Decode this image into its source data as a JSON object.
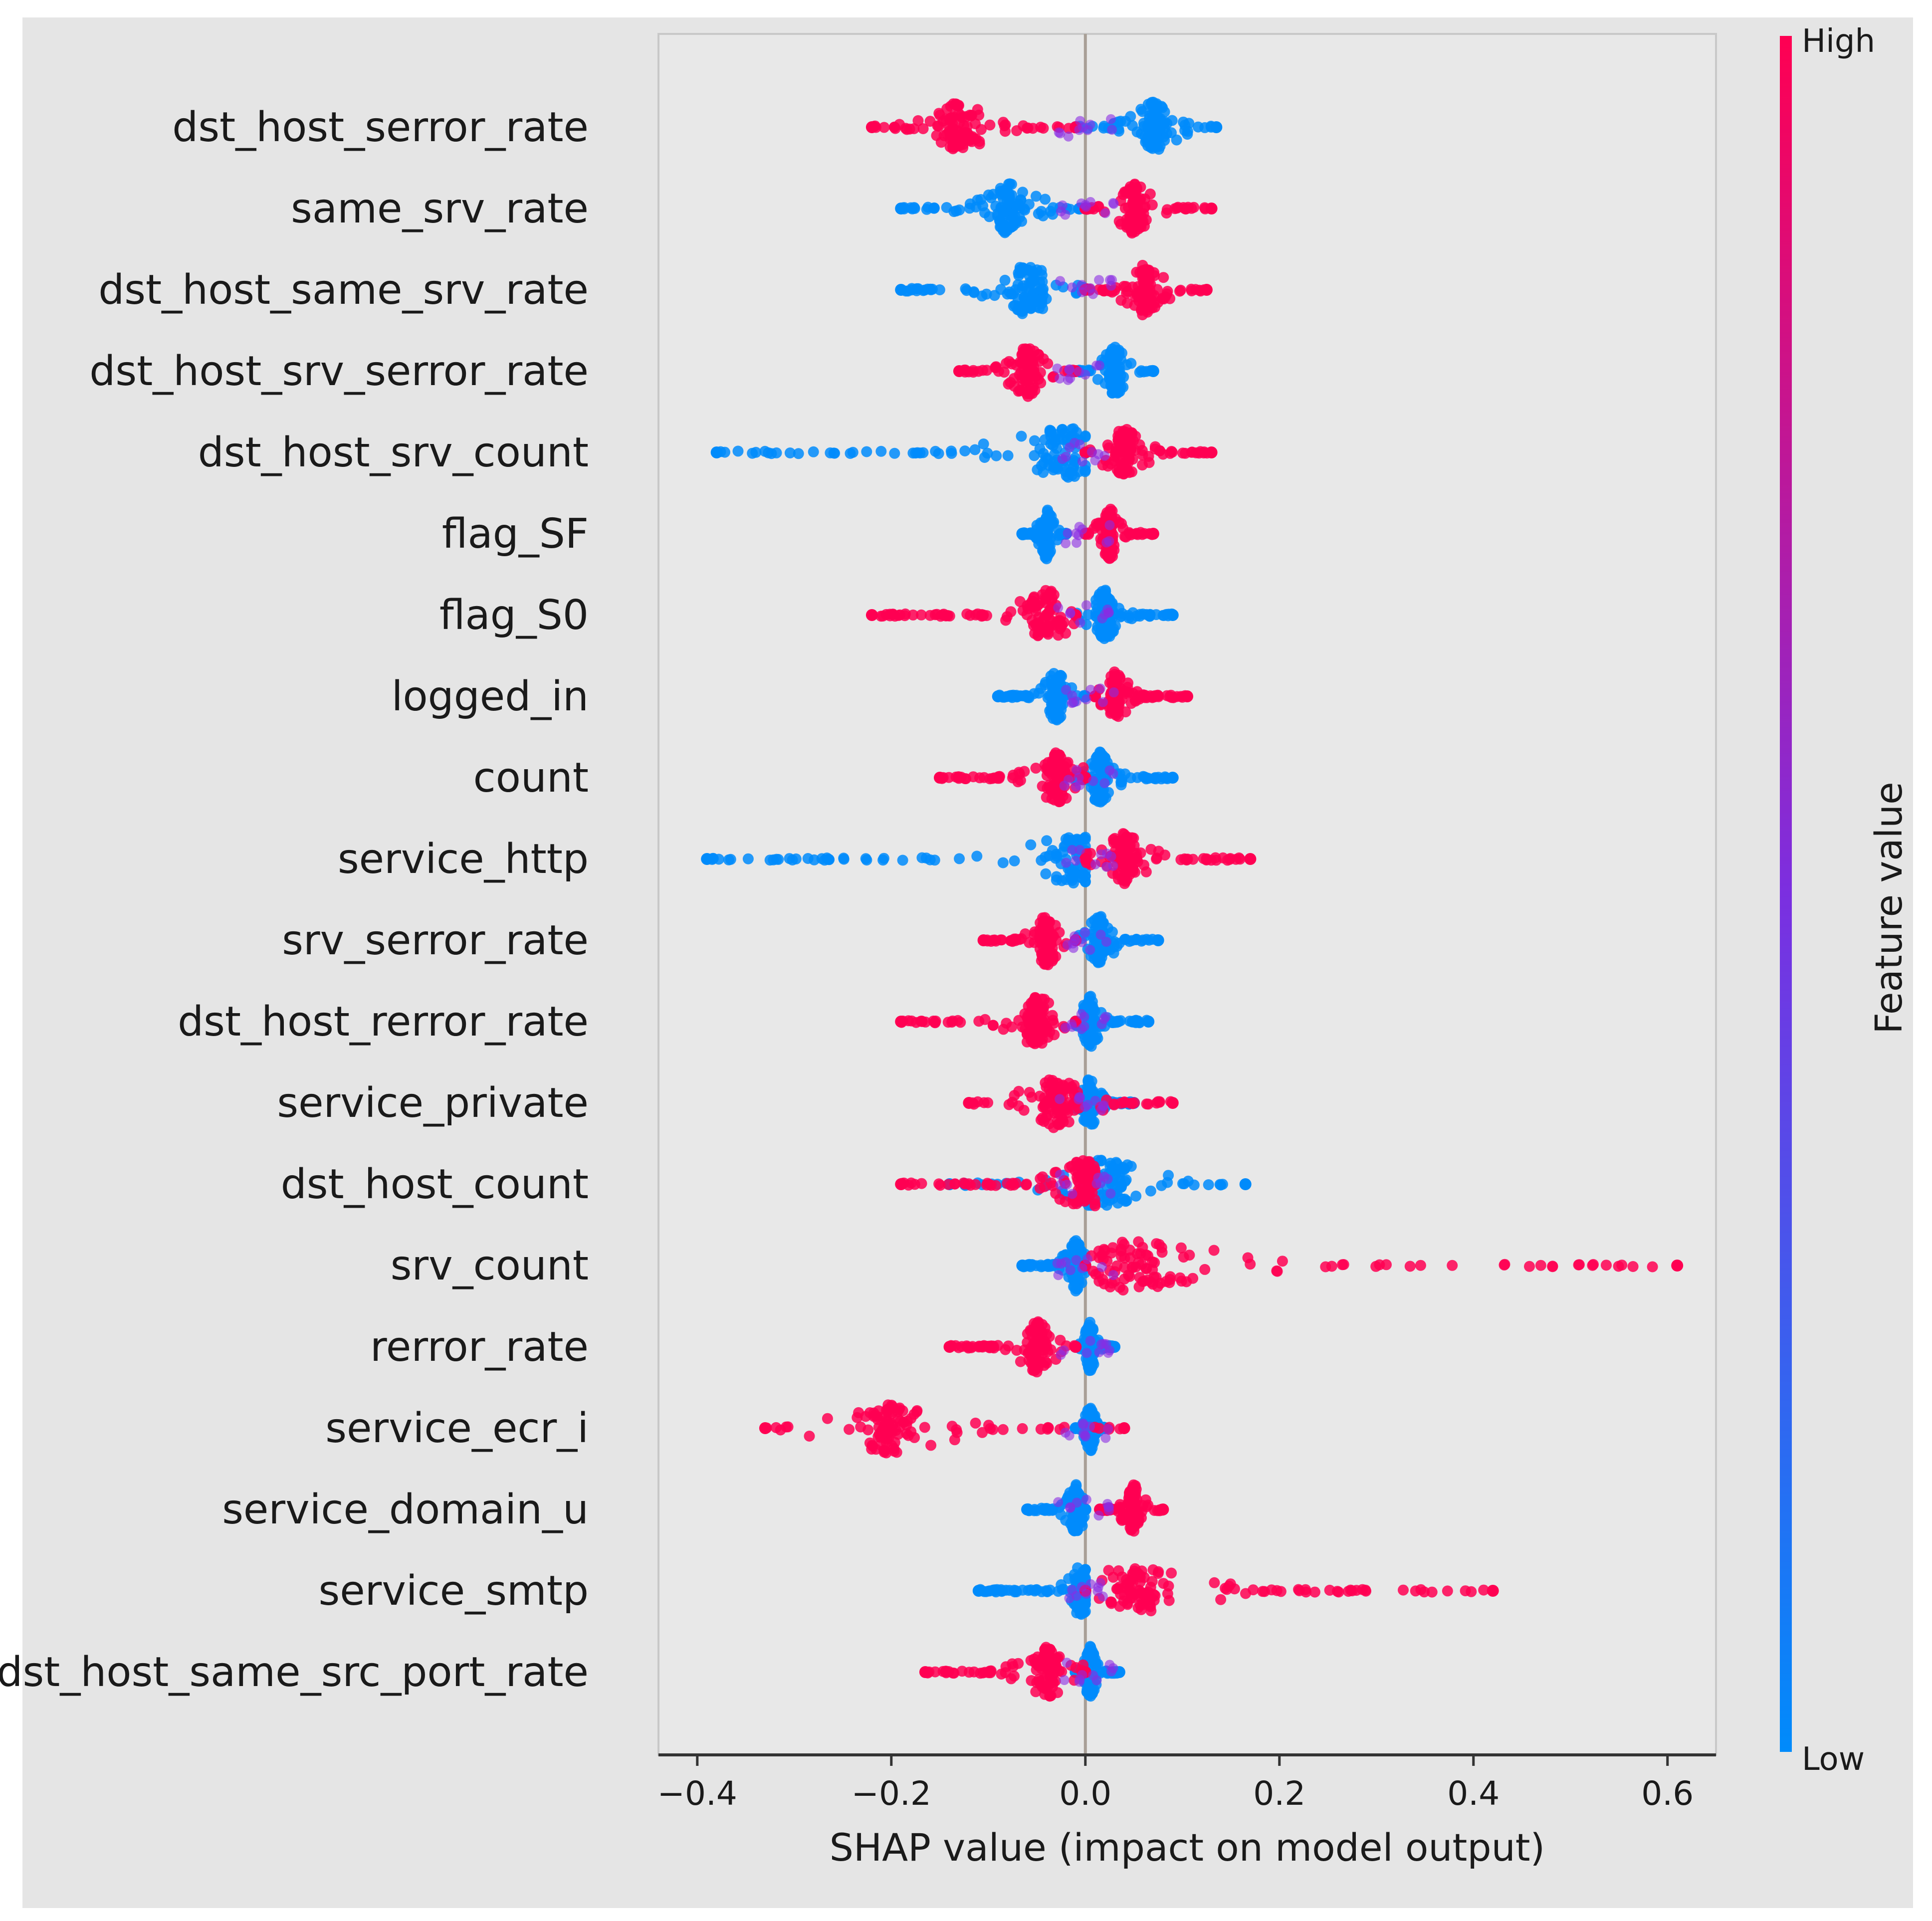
{
  "chart_data": {
    "type": "scatter",
    "subtype": "shap-beeswarm",
    "title": "",
    "xlabel": "SHAP value (impact on model output)",
    "ylabel": "",
    "xlim": [
      -0.44,
      0.65
    ],
    "xticks": [
      -0.4,
      -0.2,
      0.0,
      0.2,
      0.4,
      0.6
    ],
    "xtick_labels": [
      "−0.4",
      "−0.2",
      "0.0",
      "0.2",
      "0.4",
      "0.6"
    ],
    "grid": false,
    "colorbar": {
      "title": "Feature value",
      "high_label": "High",
      "low_label": "Low",
      "high_color": "#ff0052",
      "low_color": "#008bfb"
    },
    "colors": {
      "background": "#e5e5e5",
      "high": "#ff0052",
      "low": "#008bfb",
      "mid": "#8a2be2",
      "zero_line": "#999999"
    },
    "features": [
      {
        "name": "dst_host_serror_rate",
        "high": {
          "min": -0.22,
          "max": -0.01,
          "center": -0.13
        },
        "low": {
          "min": -0.01,
          "max": 0.135,
          "center": 0.07
        }
      },
      {
        "name": "same_srv_rate",
        "high": {
          "min": 0.0,
          "max": 0.13,
          "center": 0.05
        },
        "low": {
          "min": -0.19,
          "max": 0.0,
          "center": -0.08
        }
      },
      {
        "name": "dst_host_same_srv_rate",
        "high": {
          "min": 0.0,
          "max": 0.125,
          "center": 0.06
        },
        "low": {
          "min": -0.19,
          "max": 0.0,
          "center": -0.06
        }
      },
      {
        "name": "dst_host_srv_serror_rate",
        "high": {
          "min": -0.13,
          "max": -0.01,
          "center": -0.06
        },
        "low": {
          "min": -0.01,
          "max": 0.07,
          "center": 0.03
        }
      },
      {
        "name": "dst_host_srv_count",
        "high": {
          "min": 0.0,
          "max": 0.13,
          "center": 0.04
        },
        "low": {
          "min": -0.38,
          "max": 0.0,
          "center": -0.02
        }
      },
      {
        "name": "flag_SF",
        "high": {
          "min": 0.0,
          "max": 0.07,
          "center": 0.025
        },
        "low": {
          "min": -0.065,
          "max": -0.02,
          "center": -0.04
        }
      },
      {
        "name": "flag_S0",
        "high": {
          "min": -0.22,
          "max": -0.01,
          "center": -0.04
        },
        "low": {
          "min": -0.01,
          "max": 0.09,
          "center": 0.02
        }
      },
      {
        "name": "logged_in",
        "high": {
          "min": 0.01,
          "max": 0.105,
          "center": 0.03
        },
        "low": {
          "min": -0.09,
          "max": 0.0,
          "center": -0.03
        }
      },
      {
        "name": "count",
        "high": {
          "min": -0.15,
          "max": 0.0,
          "center": -0.03
        },
        "low": {
          "min": -0.01,
          "max": 0.09,
          "center": 0.015
        }
      },
      {
        "name": "service_http",
        "high": {
          "min": 0.0,
          "max": 0.17,
          "center": 0.04
        },
        "low": {
          "min": -0.39,
          "max": 0.0,
          "center": -0.01
        }
      },
      {
        "name": "srv_serror_rate",
        "high": {
          "min": -0.105,
          "max": -0.01,
          "center": -0.04
        },
        "low": {
          "min": -0.01,
          "max": 0.075,
          "center": 0.015
        }
      },
      {
        "name": "dst_host_rerror_rate",
        "high": {
          "min": -0.19,
          "max": -0.01,
          "center": -0.05
        },
        "low": {
          "min": -0.01,
          "max": 0.065,
          "center": 0.005
        }
      },
      {
        "name": "service_private",
        "high": {
          "min": -0.12,
          "max": 0.09,
          "center": -0.03
        },
        "low": {
          "min": -0.01,
          "max": 0.05,
          "center": 0.005
        }
      },
      {
        "name": "dst_host_count",
        "high": {
          "min": -0.19,
          "max": 0.01,
          "center": 0.0
        },
        "low": {
          "min": -0.14,
          "max": 0.165,
          "center": 0.02
        }
      },
      {
        "name": "srv_count",
        "high": {
          "min": 0.0,
          "max": 0.61,
          "center": 0.05
        },
        "low": {
          "min": -0.065,
          "max": 0.0,
          "center": -0.01
        }
      },
      {
        "name": "rerror_rate",
        "high": {
          "min": -0.14,
          "max": -0.01,
          "center": -0.05
        },
        "low": {
          "min": -0.01,
          "max": 0.03,
          "center": 0.005
        }
      },
      {
        "name": "service_ecr_i",
        "high": {
          "min": -0.33,
          "max": 0.04,
          "center": -0.2
        },
        "low": {
          "min": -0.01,
          "max": 0.02,
          "center": 0.005
        }
      },
      {
        "name": "service_domain_u",
        "high": {
          "min": 0.015,
          "max": 0.08,
          "center": 0.05
        },
        "low": {
          "min": -0.06,
          "max": 0.0,
          "center": -0.01
        }
      },
      {
        "name": "service_smtp",
        "high": {
          "min": 0.0,
          "max": 0.42,
          "center": 0.05
        },
        "low": {
          "min": -0.11,
          "max": 0.0,
          "center": -0.005
        }
      },
      {
        "name": "dst_host_same_src_port_rate",
        "high": {
          "min": -0.165,
          "max": 0.0,
          "center": -0.04
        },
        "low": {
          "min": -0.01,
          "max": 0.035,
          "center": 0.005
        }
      }
    ]
  }
}
